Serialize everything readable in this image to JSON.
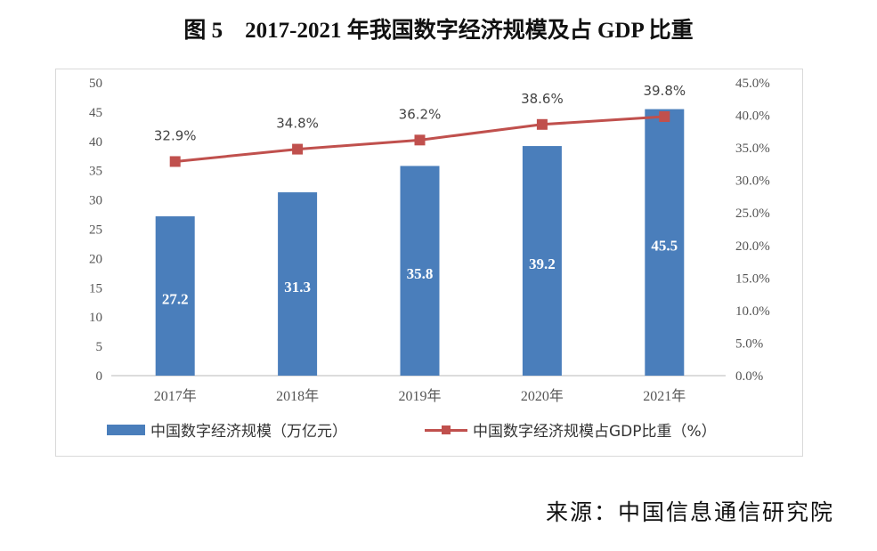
{
  "chart_data": {
    "type": "bar+line",
    "title": "图 5　2017-2021 年我国数字经济规模及占 GDP 比重",
    "categories": [
      "2017年",
      "2018年",
      "2019年",
      "2020年",
      "2021年"
    ],
    "series": [
      {
        "name": "中国数字经济规模（万亿元）",
        "type": "bar",
        "axis": "left",
        "values": [
          27.2,
          31.3,
          35.8,
          39.2,
          45.5
        ],
        "labels": [
          "27.2",
          "31.3",
          "35.8",
          "39.2",
          "45.5"
        ],
        "color": "#4a7ebb"
      },
      {
        "name": "中国数字经济规模占GDP比重（%）",
        "type": "line",
        "axis": "right",
        "values": [
          32.9,
          34.8,
          36.2,
          38.6,
          39.8
        ],
        "labels": [
          "32.9%",
          "34.8%",
          "36.2%",
          "38.6%",
          "39.8%"
        ],
        "color": "#c0504d"
      }
    ],
    "left_axis": {
      "ylim": [
        0,
        50
      ],
      "ticks": [
        "0",
        "5",
        "10",
        "15",
        "20",
        "25",
        "30",
        "35",
        "40",
        "45",
        "50"
      ]
    },
    "right_axis": {
      "ylim": [
        0,
        45
      ],
      "ticks": [
        "0.0%",
        "5.0%",
        "10.0%",
        "15.0%",
        "20.0%",
        "25.0%",
        "30.0%",
        "35.0%",
        "40.0%",
        "45.0%"
      ]
    },
    "grid": false,
    "legend": "bottom"
  },
  "source": "来源：中国信息通信研究院"
}
